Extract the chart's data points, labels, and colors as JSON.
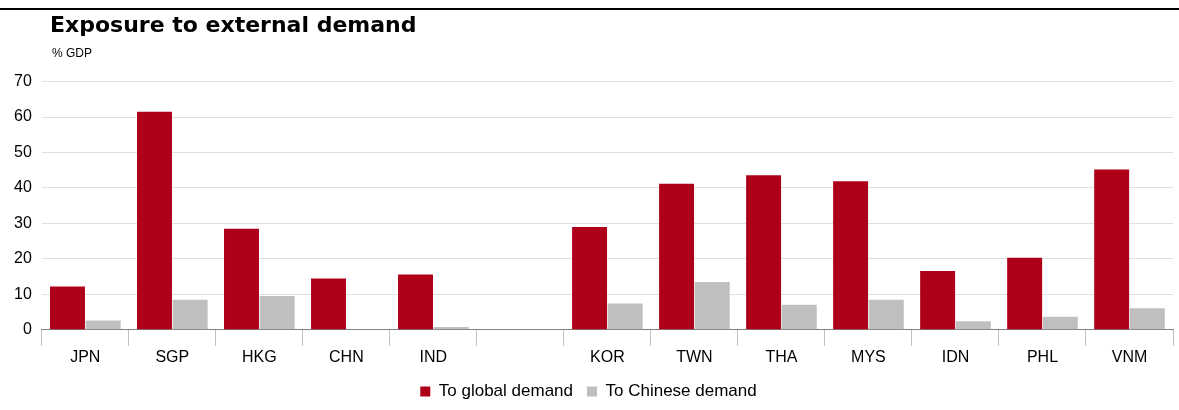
{
  "chart_data": {
    "type": "bar",
    "title": "Exposure to external demand",
    "ylabel": "% GDP",
    "categories": [
      "JPN",
      "SGP",
      "HKG",
      "CHN",
      "IND",
      null,
      "KOR",
      "TWN",
      "THA",
      "MYS",
      "IDN",
      "PHL",
      "VNM"
    ],
    "series": [
      {
        "name": "To global demand",
        "color": "#af0019",
        "values": [
          12.2,
          61.5,
          28.5,
          14.5,
          15.6,
          null,
          29,
          41.2,
          43.6,
          41.9,
          16.6,
          20.3,
          45.2
        ]
      },
      {
        "name": "To Chinese demand",
        "color": "#bfbfbf",
        "values": [
          2.6,
          8.5,
          9.5,
          0,
          0.8,
          null,
          7.4,
          13.5,
          7.1,
          8.5,
          2.4,
          3.7,
          6.1
        ]
      }
    ],
    "ylim": [
      0,
      70
    ],
    "yticks": [
      0,
      10,
      20,
      30,
      40,
      50,
      60,
      70
    ],
    "grid": "y",
    "legend": "bottom"
  }
}
